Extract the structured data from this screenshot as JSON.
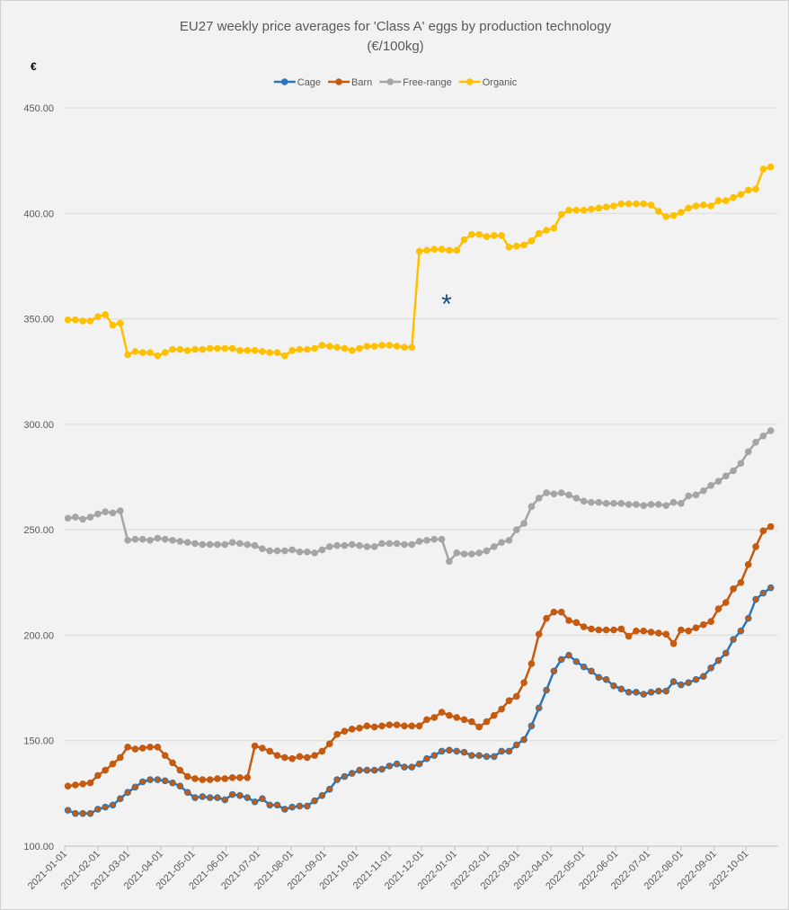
{
  "chart_data": {
    "type": "line",
    "title": "EU27 weekly price averages for 'Class A' eggs by production technology",
    "subtitle": "(€/100kg)",
    "y_label": "€",
    "annotations": [
      {
        "text": "*",
        "color": "#1f4e79"
      }
    ],
    "grid": true,
    "legend": "top",
    "x": [
      "2021-01-04",
      "2021-01-11",
      "2021-01-18",
      "2021-01-25",
      "2021-02-01",
      "2021-02-08",
      "2021-02-15",
      "2021-02-22",
      "2021-03-01",
      "2021-03-08",
      "2021-03-15",
      "2021-03-22",
      "2021-03-29",
      "2021-04-05",
      "2021-04-12",
      "2021-04-19",
      "2021-04-26",
      "2021-05-03",
      "2021-05-10",
      "2021-05-17",
      "2021-05-24",
      "2021-05-31",
      "2021-06-07",
      "2021-06-14",
      "2021-06-21",
      "2021-06-28",
      "2021-07-05",
      "2021-07-12",
      "2021-07-19",
      "2021-07-26",
      "2021-08-02",
      "2021-08-09",
      "2021-08-16",
      "2021-08-23",
      "2021-08-30",
      "2021-09-06",
      "2021-09-13",
      "2021-09-20",
      "2021-09-27",
      "2021-10-04",
      "2021-10-11",
      "2021-10-18",
      "2021-10-25",
      "2021-11-01",
      "2021-11-08",
      "2021-11-15",
      "2021-11-22",
      "2021-11-29",
      "2021-12-06",
      "2021-12-13",
      "2021-12-20",
      "2021-12-27",
      "2022-01-03",
      "2022-01-10",
      "2022-01-17",
      "2022-01-24",
      "2022-01-31",
      "2022-02-07",
      "2022-02-14",
      "2022-02-21",
      "2022-02-28",
      "2022-03-07",
      "2022-03-14",
      "2022-03-21",
      "2022-03-28",
      "2022-04-04",
      "2022-04-11",
      "2022-04-18",
      "2022-04-25",
      "2022-05-02",
      "2022-05-09",
      "2022-05-16",
      "2022-05-23",
      "2022-05-30",
      "2022-06-06",
      "2022-06-13",
      "2022-06-20",
      "2022-06-27",
      "2022-07-04",
      "2022-07-11",
      "2022-07-18",
      "2022-07-25",
      "2022-08-01",
      "2022-08-08",
      "2022-08-15",
      "2022-08-22",
      "2022-08-29",
      "2022-09-05",
      "2022-09-12",
      "2022-09-19",
      "2022-09-26",
      "2022-10-03",
      "2022-10-10",
      "2022-10-17",
      "2022-10-24"
    ],
    "xlim": [
      "2021-01-01",
      "2022-10-31"
    ],
    "xticks": [
      "2021-01-01",
      "2021-02-01",
      "2021-03-01",
      "2021-04-01",
      "2021-05-01",
      "2021-06-01",
      "2021-07-01",
      "2021-08-01",
      "2021-09-01",
      "2021-10-01",
      "2021-11-01",
      "2021-12-01",
      "2022-01-01",
      "2022-02-01",
      "2022-03-01",
      "2022-04-01",
      "2022-05-01",
      "2022-06-01",
      "2022-07-01",
      "2022-08-01",
      "2022-09-01",
      "2022-10-01"
    ],
    "ylim": [
      100,
      450
    ],
    "yticks": [
      {
        "value": 100,
        "label": "100.00"
      },
      {
        "value": 150,
        "label": "150.00"
      },
      {
        "value": 200,
        "label": "200.00"
      },
      {
        "value": 250,
        "label": "250.00"
      },
      {
        "value": 300,
        "label": "300.00"
      },
      {
        "value": 350,
        "label": "350.00"
      },
      {
        "value": 400,
        "label": "400.00"
      },
      {
        "value": 450,
        "label": "450.00"
      }
    ],
    "series": [
      {
        "name": "Cage",
        "color": "#2e75b6",
        "marker_color": "#c55a11",
        "values": [
          117,
          115.5,
          115.5,
          115.5,
          117.5,
          118.5,
          119.5,
          122.5,
          125.5,
          128,
          130.5,
          131.5,
          131.5,
          131,
          130,
          128.5,
          125.5,
          123,
          123.5,
          123,
          123,
          122,
          124.5,
          124,
          123,
          121,
          122.5,
          119.5,
          119.5,
          117.5,
          118.5,
          119,
          119,
          121.5,
          124,
          127,
          131.5,
          133,
          134.5,
          136,
          136,
          136,
          136.5,
          138,
          139,
          137.5,
          137.5,
          139,
          141.5,
          143,
          145,
          145.5,
          145,
          144.5,
          143,
          143,
          142.5,
          142.5,
          145,
          145,
          148,
          150.5,
          157,
          165.5,
          174,
          183,
          188.5,
          190.5,
          187.5,
          185,
          183,
          180,
          179,
          176,
          174.5,
          173,
          173,
          172,
          173,
          173.5,
          173.5,
          178,
          176.5,
          177.5,
          179,
          180.5,
          184.5,
          188,
          191.5,
          198,
          202,
          208,
          217,
          220,
          222.5
        ]
      },
      {
        "name": "Barn",
        "color": "#c55a11",
        "values": [
          128.5,
          129,
          129.5,
          130,
          133.5,
          136,
          139,
          142,
          147,
          146,
          146.5,
          147,
          147,
          143,
          139.5,
          136,
          133,
          132,
          131.5,
          131.5,
          132,
          132,
          132.5,
          132.5,
          132.5,
          147.5,
          146.5,
          145,
          143,
          142,
          141.5,
          142.5,
          142,
          143,
          145,
          148.5,
          153,
          154.5,
          155.5,
          156,
          157,
          156.5,
          157,
          157.5,
          157.5,
          157,
          157,
          157,
          160,
          161,
          163.5,
          162,
          161,
          160,
          159,
          156.5,
          159,
          162,
          165,
          169,
          171,
          177.5,
          186.5,
          200.5,
          208,
          211,
          211,
          207,
          206,
          204,
          203,
          202.5,
          202.5,
          202.5,
          203,
          199.5,
          202,
          202,
          201.5,
          201,
          200.5,
          196,
          202.5,
          202,
          203.5,
          205,
          206.5,
          212.5,
          215.5,
          222,
          225,
          233.5,
          242,
          249.5,
          251.5
        ]
      },
      {
        "name": "Free-range",
        "color": "#a5a5a5",
        "values": [
          255.5,
          256,
          255,
          256,
          257.5,
          258.5,
          258,
          259,
          245,
          245.5,
          245.5,
          245,
          246,
          245.5,
          245,
          244.5,
          244,
          243.5,
          243,
          243,
          243,
          243,
          244,
          243.5,
          243,
          242.5,
          241,
          240,
          240,
          240,
          240.5,
          239.5,
          239.5,
          239,
          240.5,
          242,
          242.5,
          242.5,
          243,
          242.5,
          242,
          242,
          243.5,
          243.5,
          243.5,
          243,
          243,
          244.5,
          245,
          245.5,
          245.5,
          235,
          239,
          238.5,
          238.5,
          239,
          240,
          242,
          244,
          245,
          250,
          253,
          261,
          265,
          267.5,
          267,
          267.5,
          266.5,
          265,
          263.5,
          263,
          263,
          262.5,
          262.5,
          262.5,
          262,
          262,
          261.5,
          262,
          262,
          261.5,
          263,
          262.5,
          266,
          266.5,
          268.5,
          271,
          273,
          275.5,
          278,
          281.5,
          287,
          291.5,
          294.5,
          297
        ]
      },
      {
        "name": "Organic",
        "color": "#ffc000",
        "values": [
          349.5,
          349.5,
          349,
          349,
          351,
          352,
          347,
          348,
          333,
          334.5,
          334,
          334,
          332.5,
          334,
          335.5,
          335.5,
          335,
          335.5,
          335.5,
          336,
          336,
          336,
          336,
          335,
          335,
          335,
          334.5,
          334,
          334,
          332.5,
          335,
          335.5,
          335.5,
          336,
          337.5,
          337,
          336.5,
          336,
          335,
          336,
          337,
          337,
          337.5,
          337.5,
          337,
          336.5,
          336.5,
          382,
          382.5,
          383,
          383,
          382.5,
          382.5,
          387.5,
          390,
          390,
          389,
          389.5,
          389.5,
          384,
          384.5,
          385,
          387,
          390.5,
          392,
          393,
          399.5,
          401.5,
          401.5,
          401.5,
          402,
          402.5,
          403,
          403.5,
          404.5,
          404.5,
          404.5,
          404.5,
          404,
          401,
          398.5,
          399,
          400.5,
          402.5,
          403.5,
          404,
          403.5,
          406,
          406,
          407.5,
          409,
          411,
          411.5,
          421,
          422
        ]
      }
    ]
  }
}
